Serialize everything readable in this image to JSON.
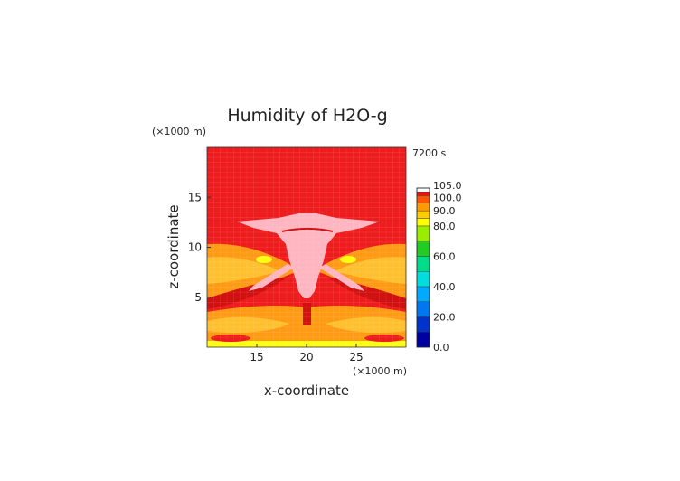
{
  "chart_data": {
    "type": "heatmap",
    "title": "Humidity of H2O-g",
    "time_label": "7200 s",
    "xlabel": "x-coordinate",
    "ylabel": "z-coordinate",
    "x_unit": "(×1000 m)",
    "y_unit": "(×1000 m)",
    "xlim": [
      10,
      30
    ],
    "ylim": [
      0,
      20
    ],
    "x_ticks": [
      15,
      20,
      25
    ],
    "y_ticks": [
      5,
      10,
      15
    ],
    "colorbar": {
      "range": [
        0,
        105
      ],
      "tick_labels": [
        "0.0",
        "20.0",
        "40.0",
        "60.0",
        "80.0",
        "90.0",
        "100.0",
        "105.0"
      ],
      "tick_values": [
        0,
        20,
        40,
        60,
        80,
        90,
        100,
        105
      ],
      "levels": [
        {
          "from": 0,
          "to": 10,
          "color": "#0000a0"
        },
        {
          "from": 10,
          "to": 20,
          "color": "#0033cc"
        },
        {
          "from": 20,
          "to": 30,
          "color": "#0077ee"
        },
        {
          "from": 30,
          "to": 40,
          "color": "#00aaff"
        },
        {
          "from": 40,
          "to": 50,
          "color": "#00dddd"
        },
        {
          "from": 50,
          "to": 60,
          "color": "#00dd88"
        },
        {
          "from": 60,
          "to": 70,
          "color": "#22cc22"
        },
        {
          "from": 70,
          "to": 80,
          "color": "#99ee00"
        },
        {
          "from": 80,
          "to": 85,
          "color": "#ffff00"
        },
        {
          "from": 85,
          "to": 90,
          "color": "#ffcc00"
        },
        {
          "from": 90,
          "to": 95,
          "color": "#ff9900"
        },
        {
          "from": 95,
          "to": 100,
          "color": "#ff5500"
        },
        {
          "from": 100,
          "to": 102.5,
          "color": "#ee1111"
        },
        {
          "from": 102.5,
          "to": 105,
          "color": "#ffffff"
        }
      ]
    },
    "field_colors": {
      "background": "#ee1c1c",
      "dark_red": "#d21010",
      "orange": "#ff9a14",
      "light_orange": "#ffc030",
      "yellow": "#ffff10",
      "supersaturated": "#ffb6c1"
    }
  }
}
